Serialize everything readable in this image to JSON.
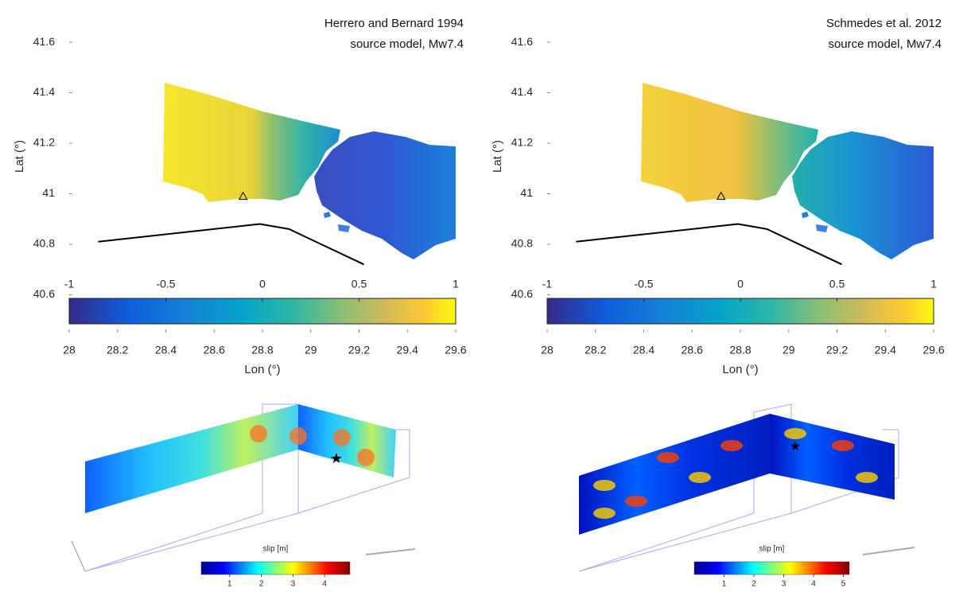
{
  "chart_data": [
    {
      "type": "map",
      "annotation": [
        "Herrero and Bernard 1994",
        "source model, Mw7.4"
      ],
      "xlabel": "Lon (°)",
      "ylabel": "Lat (°)",
      "xlim": [
        28,
        29.6
      ],
      "xticks": [
        28,
        28.2,
        28.4,
        28.6,
        28.8,
        29,
        29.2,
        29.4,
        29.6
      ],
      "ylim": [
        40.45,
        41.72
      ],
      "yticks": [
        40.6,
        40.8,
        41,
        41.2,
        41.4,
        41.6
      ],
      "fault": {
        "x": [
          28.12,
          28.79,
          28.91,
          29.22
        ],
        "values": [
          40.81,
          40.88,
          40.86,
          40.72
        ]
      },
      "station": {
        "x": [
          28.72
        ],
        "values": [
          40.99
        ]
      },
      "colorbar": {
        "lim": [
          -1,
          1
        ],
        "ticks": [
          -1,
          -0.5,
          0,
          0.5,
          1
        ]
      }
    },
    {
      "type": "map",
      "annotation": [
        "Schmedes et al. 2012",
        "source model, Mw7.4"
      ],
      "xlabel": "Lon (°)",
      "ylabel": "Lat (°)",
      "xlim": [
        28,
        29.6
      ],
      "xticks": [
        28,
        28.2,
        28.4,
        28.6,
        28.8,
        29,
        29.2,
        29.4,
        29.6
      ],
      "ylim": [
        40.45,
        41.72
      ],
      "yticks": [
        40.6,
        40.8,
        41,
        41.2,
        41.4,
        41.6
      ],
      "fault": {
        "x": [
          28.12,
          28.79,
          28.91,
          29.22
        ],
        "values": [
          40.81,
          40.88,
          40.86,
          40.72
        ]
      },
      "station": {
        "x": [
          28.72
        ],
        "values": [
          40.99
        ]
      },
      "colorbar": {
        "lim": [
          -1,
          1
        ],
        "ticks": [
          -1,
          -0.5,
          0,
          0.5,
          1
        ]
      }
    },
    {
      "type": "slip",
      "colorbar": {
        "label": "slip [m]",
        "lim": [
          0.1,
          4.8
        ],
        "ticks": [
          1,
          2,
          3,
          4
        ]
      }
    },
    {
      "type": "slip",
      "colorbar": {
        "label": "slip [m]",
        "lim": [
          0,
          5.2
        ],
        "ticks": [
          1,
          2,
          3,
          4,
          5
        ]
      }
    }
  ]
}
